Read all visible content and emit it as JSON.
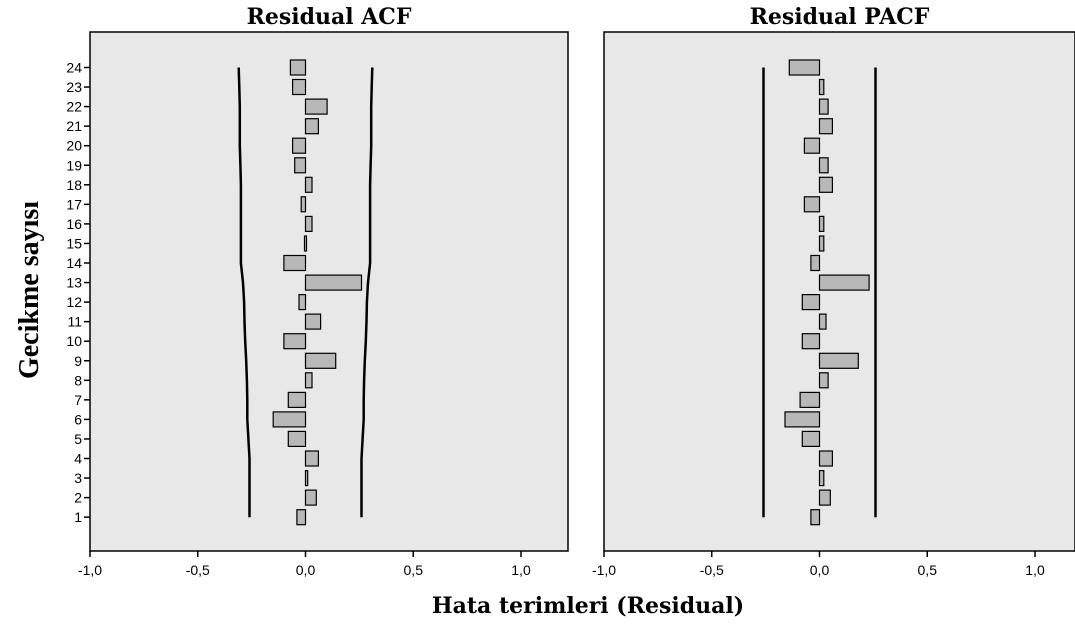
{
  "chart_data": [
    {
      "type": "bar",
      "orientation": "horizontal",
      "title": "Residual ACF",
      "categories": [
        "1",
        "2",
        "3",
        "4",
        "5",
        "6",
        "7",
        "8",
        "9",
        "10",
        "11",
        "12",
        "13",
        "14",
        "15",
        "16",
        "17",
        "18",
        "19",
        "20",
        "21",
        "22",
        "23",
        "24"
      ],
      "values": [
        -0.04,
        0.05,
        0.01,
        0.06,
        -0.08,
        -0.15,
        -0.08,
        0.03,
        0.14,
        -0.1,
        0.07,
        -0.03,
        0.26,
        -0.1,
        0.0,
        0.03,
        -0.02,
        0.03,
        -0.05,
        -0.06,
        0.06,
        0.1,
        -0.06,
        -0.07
      ],
      "confidence_limit": {
        "upper": [
          0.26,
          0.26,
          0.26,
          0.26,
          0.265,
          0.27,
          0.27,
          0.272,
          0.275,
          0.28,
          0.283,
          0.285,
          0.29,
          0.3,
          0.3,
          0.3,
          0.3,
          0.3,
          0.302,
          0.305,
          0.305,
          0.305,
          0.307,
          0.31
        ],
        "lower": [
          -0.26,
          -0.26,
          -0.26,
          -0.26,
          -0.265,
          -0.27,
          -0.27,
          -0.272,
          -0.275,
          -0.28,
          -0.283,
          -0.285,
          -0.29,
          -0.3,
          -0.3,
          -0.3,
          -0.3,
          -0.3,
          -0.302,
          -0.305,
          -0.305,
          -0.305,
          -0.307,
          -0.31
        ]
      },
      "xlim": [
        -1.0,
        1.2
      ],
      "xticks": [
        -1.0,
        -0.5,
        0.0,
        0.5,
        1.0
      ],
      "xtick_labels": [
        "-1,0",
        "-0,5",
        "0,0",
        "0,5",
        "1,0"
      ]
    },
    {
      "type": "bar",
      "orientation": "horizontal",
      "title": "Residual PACF",
      "categories": [
        "1",
        "2",
        "3",
        "4",
        "5",
        "6",
        "7",
        "8",
        "9",
        "10",
        "11",
        "12",
        "13",
        "14",
        "15",
        "16",
        "17",
        "18",
        "19",
        "20",
        "21",
        "22",
        "23",
        "24"
      ],
      "values": [
        -0.04,
        0.05,
        0.02,
        0.06,
        -0.08,
        -0.16,
        -0.09,
        0.04,
        0.18,
        -0.08,
        0.03,
        -0.08,
        0.23,
        -0.04,
        0.02,
        0.02,
        -0.07,
        0.06,
        0.04,
        -0.07,
        0.06,
        0.04,
        0.02,
        -0.14
      ],
      "confidence_limit": {
        "upper": [
          0.26,
          0.26,
          0.26,
          0.26,
          0.26,
          0.26,
          0.26,
          0.26,
          0.26,
          0.26,
          0.26,
          0.26,
          0.26,
          0.26,
          0.26,
          0.26,
          0.26,
          0.26,
          0.26,
          0.26,
          0.26,
          0.26,
          0.26,
          0.26
        ],
        "lower": [
          -0.26,
          -0.26,
          -0.26,
          -0.26,
          -0.26,
          -0.26,
          -0.26,
          -0.26,
          -0.26,
          -0.26,
          -0.26,
          -0.26,
          -0.26,
          -0.26,
          -0.26,
          -0.26,
          -0.26,
          -0.26,
          -0.26,
          -0.26,
          -0.26,
          -0.26,
          -0.26,
          -0.26
        ]
      },
      "xlim": [
        -1.0,
        1.2
      ],
      "xticks": [
        -1.0,
        -0.5,
        0.0,
        0.5,
        1.0
      ],
      "xtick_labels": [
        "-1,0",
        "-0,5",
        "0,0",
        "0,5",
        "1,0"
      ]
    }
  ],
  "xlabel": "Hata terimleri (Residual)",
  "ylabel": "Gecikme sayısı",
  "colors": {
    "bar_fill": "#b8b8b8",
    "plot_background": "#e8e8e8"
  }
}
